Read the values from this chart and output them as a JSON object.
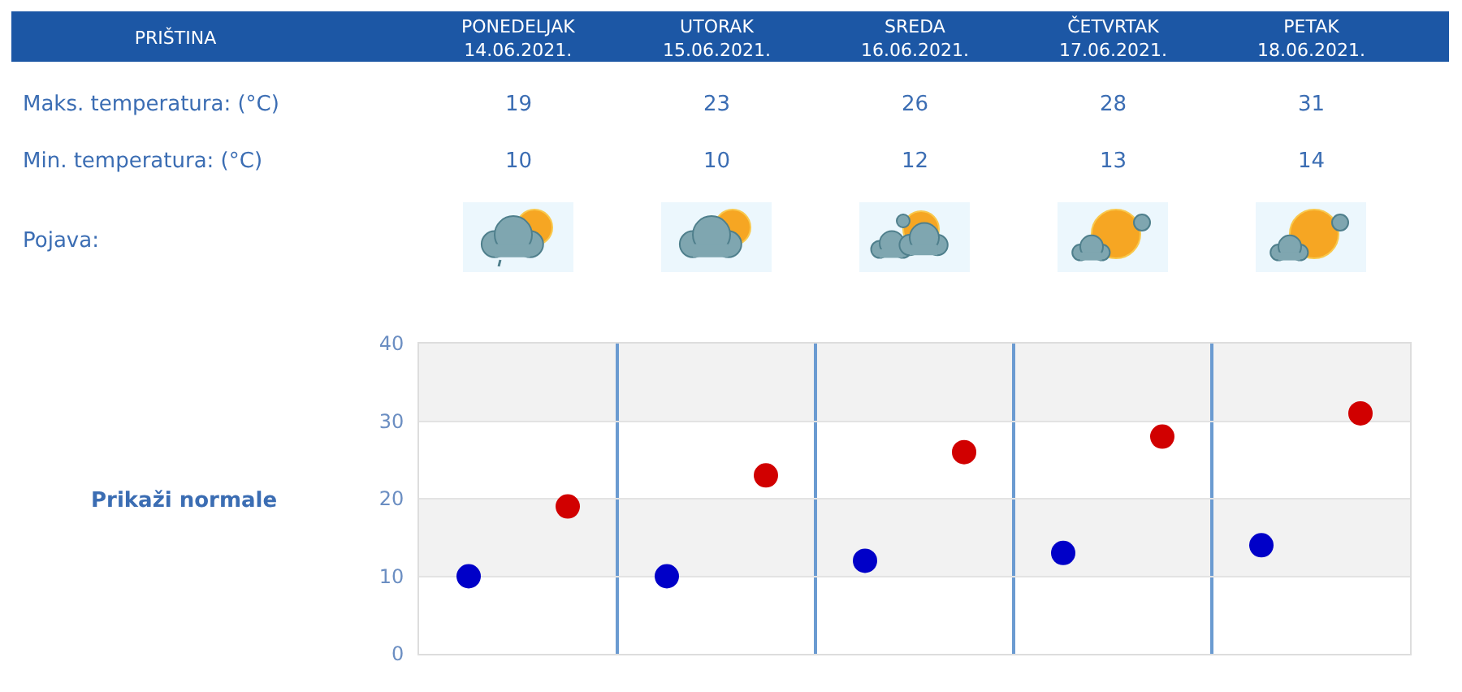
{
  "chart_data": {
    "type": "scatter",
    "title": "PRIŠTINA",
    "categories": [
      null,
      null,
      null,
      null,
      null
    ],
    "series": [
      {
        "color": "#d10000",
        "values": [
          19,
          23,
          26,
          28,
          31
        ]
      },
      {
        "color": "#0000c8",
        "values": [
          10,
          10,
          12,
          13,
          14
        ]
      }
    ],
    "ylim": [
      0,
      40
    ],
    "yticks": [
      0,
      10,
      20,
      30,
      40
    ],
    "grid": true,
    "marker": "circle",
    "data_labels": true,
    "bands": [
      {
        "axis": "y",
        "from": 10,
        "to": 20,
        "color": "#f2f2f2"
      },
      {
        "axis": "y",
        "from": 30,
        "to": 40,
        "color": "#f2f2f2"
      }
    ],
    "annotations": [
      "PONEDELJAK\n14.06.2021.",
      "UTORAK\n15.06.2021.",
      "SREDA\n16.06.2021.",
      "ČETVRTAK\n17.06.2021.",
      "PETAK\n18.06.2021.",
      "Maks. temperatura: (°C)",
      "Min. temperatura: (°C)",
      "Pojava:",
      "Prikaži normale"
    ]
  }
}
